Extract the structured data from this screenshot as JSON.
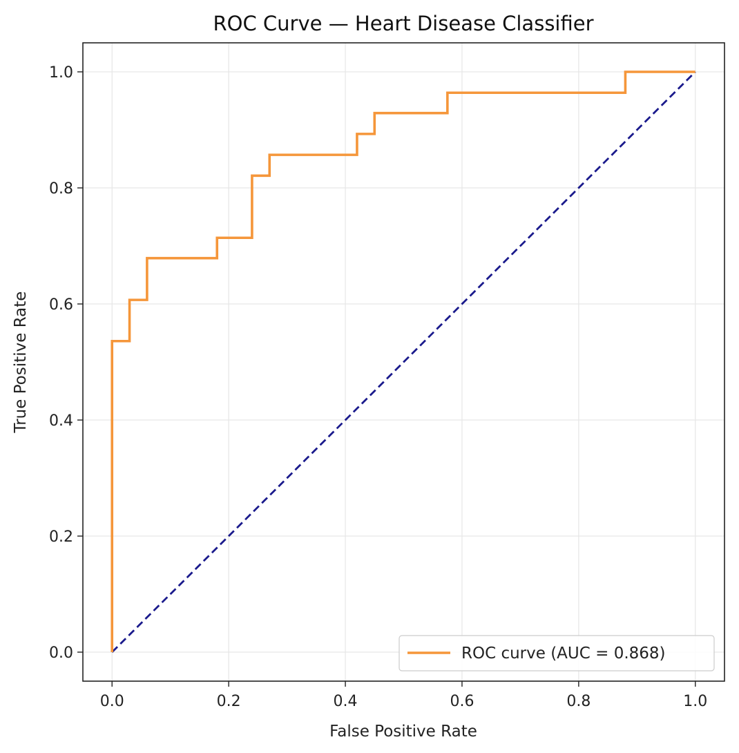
{
  "chart_data": {
    "type": "line",
    "title": "ROC Curve — Heart Disease Classifier",
    "xlabel": "False Positive Rate",
    "ylabel": "True Positive Rate",
    "xlim": [
      -0.05,
      1.05
    ],
    "ylim": [
      -0.05,
      1.05
    ],
    "xticks": [
      0.0,
      0.2,
      0.4,
      0.6,
      0.8,
      1.0
    ],
    "xtick_labels": [
      "0.0",
      "0.2",
      "0.4",
      "0.6",
      "0.8",
      "1.0"
    ],
    "yticks": [
      0.0,
      0.2,
      0.4,
      0.6,
      0.8,
      1.0
    ],
    "ytick_labels": [
      "0.0",
      "0.2",
      "0.4",
      "0.6",
      "0.8",
      "1.0"
    ],
    "grid": true,
    "legend_position": "lower right",
    "series": [
      {
        "name": "ROC curve (AUC = 0.868)",
        "color": "#f5963a",
        "style": "solid",
        "x": [
          0.0,
          0.0,
          0.0,
          0.03,
          0.03,
          0.06,
          0.06,
          0.18,
          0.18,
          0.24,
          0.24,
          0.27,
          0.27,
          0.42,
          0.42,
          0.45,
          0.45,
          0.575,
          0.575,
          0.88,
          0.88,
          1.0
        ],
        "y": [
          0.0,
          0.536,
          0.536,
          0.536,
          0.607,
          0.607,
          0.679,
          0.679,
          0.714,
          0.714,
          0.821,
          0.821,
          0.857,
          0.857,
          0.893,
          0.893,
          0.929,
          0.929,
          0.964,
          0.964,
          1.0,
          1.0
        ]
      },
      {
        "name": "",
        "color": "#1a1a8c",
        "style": "dashed",
        "x": [
          0.0,
          1.0
        ],
        "y": [
          0.0,
          1.0
        ]
      }
    ]
  }
}
